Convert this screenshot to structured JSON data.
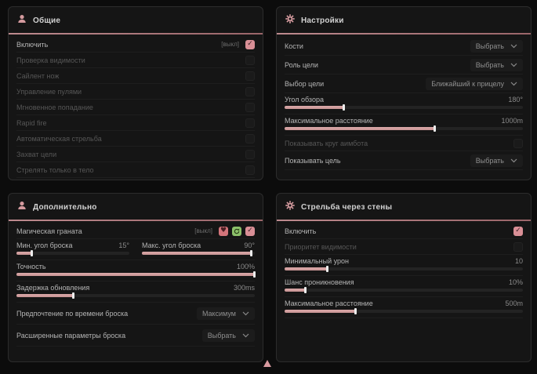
{
  "colors": {
    "accent": "#d49a9e",
    "slider_fill": "#d3a0a0",
    "checkbox_checked": "#d98f96",
    "green_button": "#8cc06a",
    "red_button": "#d4757b",
    "panel_bg": "#151515",
    "page_bg": "#0c0c0c"
  },
  "glyphs": {
    "heart": "♥"
  },
  "panels": {
    "general": {
      "title": "Общие",
      "enable": {
        "label": "Включить",
        "badge": "[выкл]",
        "checked": true
      },
      "options": [
        {
          "label": "Проверка видимости",
          "checked": false,
          "disabled": true
        },
        {
          "label": "Сайлент нож",
          "checked": false,
          "disabled": true
        },
        {
          "label": "Управление пулями",
          "checked": false,
          "disabled": true
        },
        {
          "label": "Мгновенное попадание",
          "checked": false,
          "disabled": true
        },
        {
          "label": "Rapid fire",
          "checked": false,
          "disabled": true
        },
        {
          "label": "Автоматическая стрельба",
          "checked": false,
          "disabled": true
        },
        {
          "label": "Захват цели",
          "checked": false,
          "disabled": true
        },
        {
          "label": "Стрелять только в тело",
          "checked": false,
          "disabled": true
        }
      ]
    },
    "settings": {
      "title": "Настройки",
      "bones": {
        "label": "Кости",
        "value": "Выбрать"
      },
      "target_role": {
        "label": "Роль цели",
        "value": "Выбрать"
      },
      "target_select": {
        "label": "Выбор цели",
        "value": "Ближайший к прицелу"
      },
      "fov": {
        "label": "Угол обзора",
        "value": "180°",
        "fill": 25
      },
      "max_distance": {
        "label": "Максимальное расстояние",
        "value": "1000m",
        "fill": 63
      },
      "show_circle": {
        "label": "Показывать круг аимбота",
        "checked": false,
        "disabled": true
      },
      "show_target": {
        "label": "Показывать цель",
        "value": "Выбрать"
      }
    },
    "additional": {
      "title": "Дополнительно",
      "magic": {
        "label": "Магическая граната",
        "badge": "[выкл]",
        "checked": true
      },
      "min_throw": {
        "label": "Мин. угол броска",
        "value": "15°",
        "fill": 14
      },
      "max_throw": {
        "label": "Макс. угол броска",
        "value": "90°",
        "fill": 97
      },
      "accuracy": {
        "label": "Точность",
        "value": "100%",
        "fill": 100
      },
      "delay": {
        "label": "Задержка обновления",
        "value": "300ms",
        "fill": 24
      },
      "throw_time": {
        "label": "Предпочтение по времени броска",
        "value": "Максимум"
      },
      "advanced": {
        "label": "Расширенные параметры броска",
        "value": "Выбрать"
      }
    },
    "walls": {
      "title": "Стрельба через стены",
      "enable": {
        "label": "Включить",
        "checked": true
      },
      "visibility_priority": {
        "label": "Приоритет видимости",
        "checked": false,
        "disabled": true
      },
      "min_damage": {
        "label": "Минимальный урон",
        "value": "10",
        "fill": 18
      },
      "penetration_chance": {
        "label": "Шанс проникновения",
        "value": "10%",
        "fill": 9
      },
      "max_distance": {
        "label": "Максимальное расстояние",
        "value": "500m",
        "fill": 30
      }
    }
  }
}
